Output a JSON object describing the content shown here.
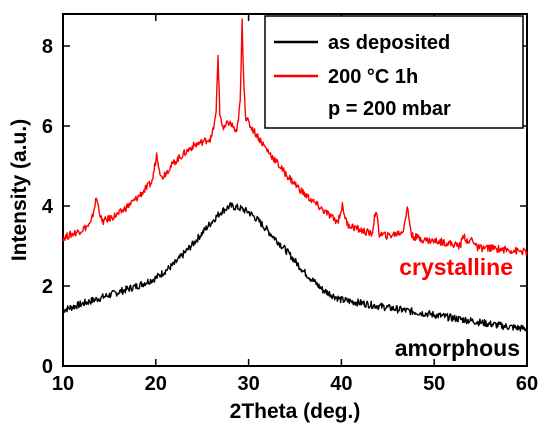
{
  "chart_data": {
    "type": "line",
    "xlabel": "2Theta (deg.)",
    "ylabel": "Intensity (a.u.)",
    "xlim": [
      10,
      60
    ],
    "ylim": [
      0,
      8.8
    ],
    "xticks": [
      10,
      20,
      30,
      40,
      50,
      60
    ],
    "yticks": [
      0,
      2,
      4,
      6,
      8
    ],
    "grid": false,
    "legend": {
      "position": "top-right",
      "entries": [
        "as deposited",
        "200 °C 1h"
      ],
      "note": "p = 200 mbar"
    },
    "annotations": [
      {
        "text": "crystalline",
        "color": "#ff0000",
        "x": 50,
        "y": 2.3
      },
      {
        "text": "amorphous",
        "color": "#000000",
        "x": 50,
        "y": 0.35
      }
    ],
    "series": [
      {
        "name": "as deposited",
        "color": "#000000",
        "x": [
          10,
          12,
          14,
          16,
          18,
          20,
          22,
          24,
          26,
          27,
          28,
          29,
          30,
          31,
          32,
          34,
          36,
          38,
          40,
          42,
          44,
          46,
          48,
          50,
          52,
          54,
          56,
          58,
          60
        ],
        "y": [
          1.4,
          1.55,
          1.7,
          1.85,
          2.0,
          2.2,
          2.55,
          3.05,
          3.6,
          3.85,
          4.0,
          3.95,
          3.85,
          3.65,
          3.4,
          2.9,
          2.35,
          1.9,
          1.65,
          1.58,
          1.5,
          1.42,
          1.35,
          1.28,
          1.2,
          1.13,
          1.05,
          0.98,
          0.93
        ]
      },
      {
        "name": "200 °C 1h",
        "color": "#ff0000",
        "x": [
          10,
          12,
          13,
          13.6,
          14.2,
          16,
          18,
          19.6,
          20.1,
          20.6,
          22,
          24,
          26,
          26.5,
          26.7,
          26.9,
          27.3,
          27.8,
          28.3,
          28.7,
          29.1,
          29.3,
          29.5,
          29.7,
          30.2,
          32,
          34,
          36,
          38,
          39.6,
          40.1,
          40.6,
          42,
          43.3,
          43.7,
          44.1,
          45,
          46.6,
          47.1,
          47.6,
          49,
          51,
          52.8,
          53.2,
          53.6,
          54.1,
          54.6,
          56,
          58,
          60
        ],
        "y": [
          3.2,
          3.4,
          3.55,
          4.2,
          3.6,
          3.8,
          4.2,
          4.6,
          5.3,
          4.7,
          5.1,
          5.5,
          5.7,
          6.3,
          7.8,
          6.3,
          5.9,
          6.1,
          6.0,
          5.8,
          6.6,
          8.6,
          7.0,
          6.2,
          6.0,
          5.4,
          4.8,
          4.3,
          3.9,
          3.6,
          4.0,
          3.55,
          3.4,
          3.3,
          3.9,
          3.3,
          3.25,
          3.35,
          3.95,
          3.25,
          3.15,
          3.1,
          3.0,
          3.3,
          3.05,
          3.2,
          2.95,
          2.95,
          2.9,
          2.85
        ]
      }
    ]
  }
}
